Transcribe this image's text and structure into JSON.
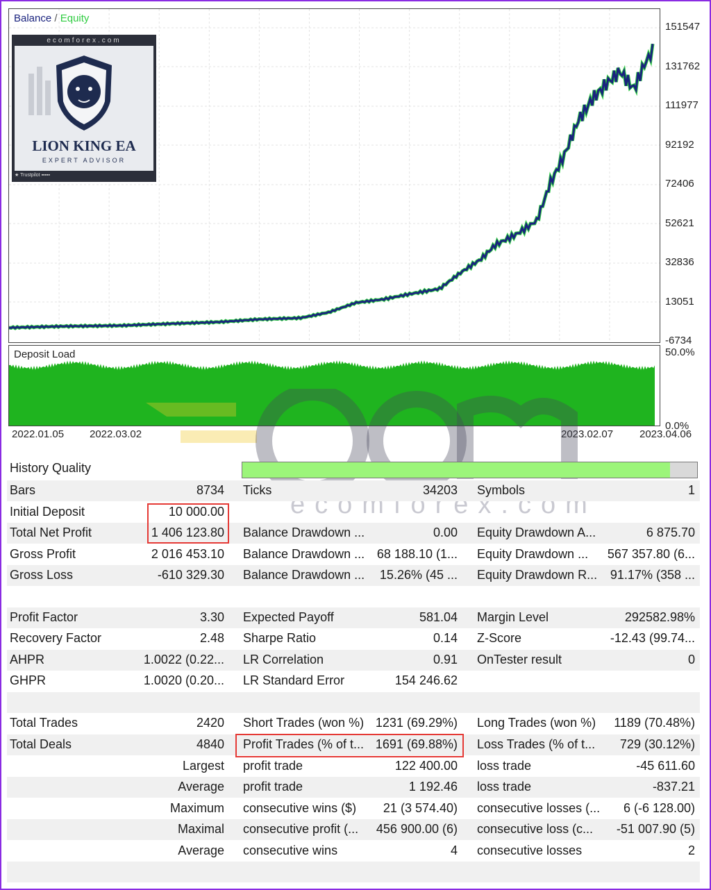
{
  "legend": {
    "balance": "Balance",
    "separator": "/",
    "equity": "Equity"
  },
  "deposit_load_label": "Deposit Load",
  "y_ticks": [
    "151547",
    "131762",
    "111977",
    "92192",
    "72406",
    "52621",
    "32836",
    "13051",
    "-6734"
  ],
  "load_ticks": [
    "50.0%",
    "0.0%"
  ],
  "x_ticks": [
    "2022.01.05",
    "2022.03.02",
    "2023.02.07",
    "2023.04.06"
  ],
  "logo": {
    "site": "ecomforex.com",
    "name": "LION KING EA",
    "subtitle": "EXPERT ADVISOR",
    "trustpilot": "Trustpilot"
  },
  "watermark": {
    "text": "ecomforex.com"
  },
  "colors": {
    "balance": "#1a237e",
    "equity": "#2ecc40",
    "load": "#1fb41f",
    "history_fill": "#9cf57a",
    "highlight": "#e53935"
  },
  "history_quality": {
    "label": "History Quality",
    "fill_fraction": 0.94
  },
  "stats": {
    "bars_label": "Bars",
    "bars": "8734",
    "ticks_label": "Ticks",
    "ticks": "34203",
    "symbols_label": "Symbols",
    "symbols": "1",
    "initial_deposit_label": "Initial Deposit",
    "initial_deposit": "10 000.00",
    "total_net_profit_label": "Total Net Profit",
    "total_net_profit": "1 406 123.80",
    "balance_dd_abs_label": "Balance Drawdown ...",
    "balance_dd_abs": "0.00",
    "equity_dd_abs_label": "Equity Drawdown A...",
    "equity_dd_abs": "6 875.70",
    "gross_profit_label": "Gross Profit",
    "gross_profit": "2 016 453.10",
    "balance_dd_max_label": "Balance Drawdown ...",
    "balance_dd_max": "68 188.10 (1...",
    "equity_dd_max_label": "Equity Drawdown ...",
    "equity_dd_max": "567 357.80 (6...",
    "gross_loss_label": "Gross Loss",
    "gross_loss": "-610 329.30",
    "balance_dd_rel_label": "Balance Drawdown ...",
    "balance_dd_rel": "15.26% (45 ...",
    "equity_dd_rel_label": "Equity Drawdown R...",
    "equity_dd_rel": "91.17% (358 ...",
    "profit_factor_label": "Profit Factor",
    "profit_factor": "3.30",
    "expected_payoff_label": "Expected Payoff",
    "expected_payoff": "581.04",
    "margin_level_label": "Margin Level",
    "margin_level": "292582.98%",
    "recovery_factor_label": "Recovery Factor",
    "recovery_factor": "2.48",
    "sharpe_label": "Sharpe Ratio",
    "sharpe": "0.14",
    "zscore_label": "Z-Score",
    "zscore": "-12.43 (99.74...",
    "ahpr_label": "AHPR",
    "ahpr": "1.0022 (0.22...",
    "lr_corr_label": "LR Correlation",
    "lr_corr": "0.91",
    "ontester_label": "OnTester result",
    "ontester": "0",
    "ghpr_label": "GHPR",
    "ghpr": "1.0020 (0.20...",
    "lr_se_label": "LR Standard Error",
    "lr_se": "154 246.62",
    "total_trades_label": "Total Trades",
    "total_trades": "2420",
    "short_trades_label": "Short Trades (won %)",
    "short_trades": "1231 (69.29%)",
    "long_trades_label": "Long Trades (won %)",
    "long_trades": "1189 (70.48%)",
    "total_deals_label": "Total Deals",
    "total_deals": "4840",
    "profit_trades_label": "Profit Trades (% of t...",
    "profit_trades": "1691 (69.88%)",
    "loss_trades_label": "Loss Trades (% of t...",
    "loss_trades": "729 (30.12%)",
    "largest_label": "Largest",
    "largest_profit_label": "profit trade",
    "largest_profit": "122 400.00",
    "largest_loss_label": "loss trade",
    "largest_loss": "-45 611.60",
    "average_label": "Average",
    "average_profit_label": "profit trade",
    "average_profit": "1 192.46",
    "average_loss_label": "loss trade",
    "average_loss": "-837.21",
    "maximum_label": "Maximum",
    "max_cons_wins_label": "consecutive wins ($)",
    "max_cons_wins": "21 (3 574.40)",
    "max_cons_losses_label": "consecutive losses (...",
    "max_cons_losses": "6 (-6 128.00)",
    "maximal_label": "Maximal",
    "maximal_cons_profit_label": "consecutive profit (...",
    "maximal_cons_profit": "456 900.00 (6)",
    "maximal_cons_loss_label": "consecutive loss (c...",
    "maximal_cons_loss": "-51 007.90 (5)",
    "average2_label": "Average",
    "avg_cons_wins_label": "consecutive wins",
    "avg_cons_wins": "4",
    "avg_cons_losses_label": "consecutive losses",
    "avg_cons_losses": "2"
  }
}
